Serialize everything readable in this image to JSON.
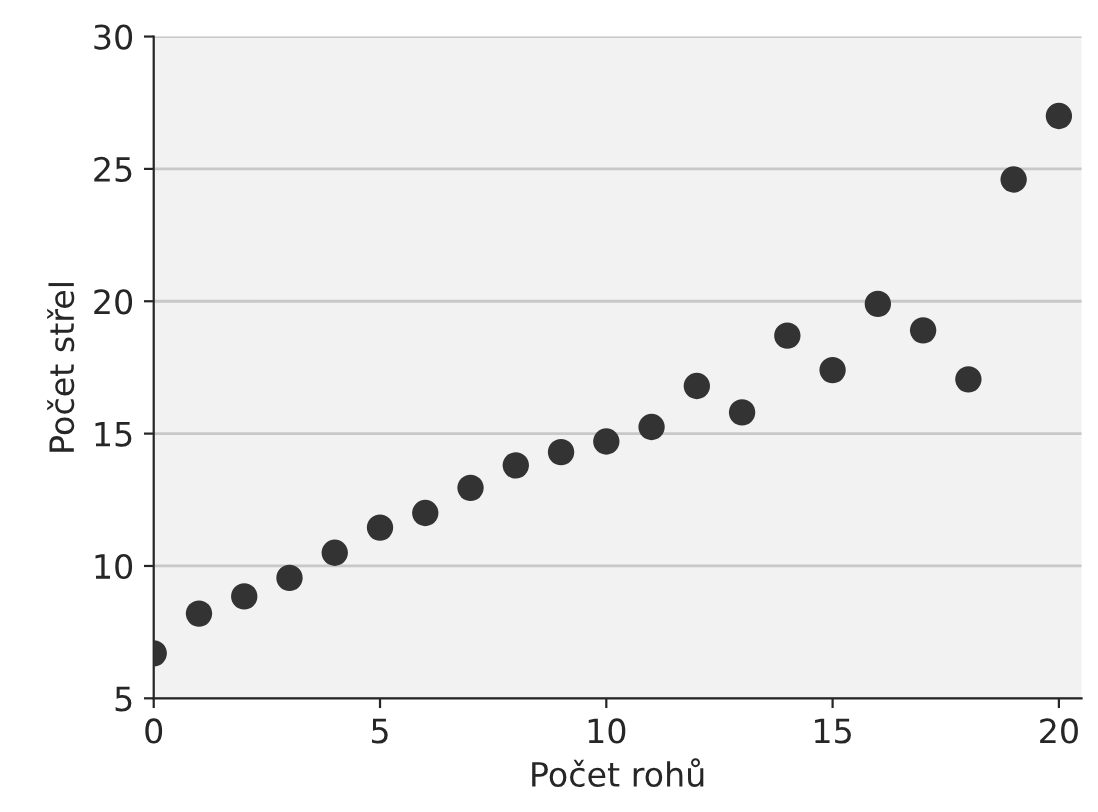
{
  "chart_data": {
    "type": "scatter",
    "xlabel": "Počet rohů",
    "ylabel": "Počet střel",
    "x": [
      0,
      1,
      2,
      3,
      4,
      5,
      6,
      7,
      8,
      9,
      10,
      11,
      12,
      13,
      14,
      15,
      16,
      17,
      18,
      19,
      20
    ],
    "series": [
      {
        "color": "#333333",
        "values": [
          6.7,
          8.2,
          8.85,
          9.55,
          10.5,
          11.45,
          12.0,
          12.95,
          13.8,
          14.3,
          14.7,
          15.25,
          16.8,
          15.8,
          18.7,
          17.4,
          19.9,
          18.9,
          17.05,
          24.6,
          27.0
        ]
      }
    ],
    "xlim": [
      0,
      20.5
    ],
    "xticks": [
      0,
      5,
      10,
      15,
      20
    ],
    "ylim": [
      5,
      30
    ],
    "yticks": [
      5,
      10,
      15,
      20,
      25,
      30
    ],
    "grid": "y",
    "marker": "circle"
  }
}
